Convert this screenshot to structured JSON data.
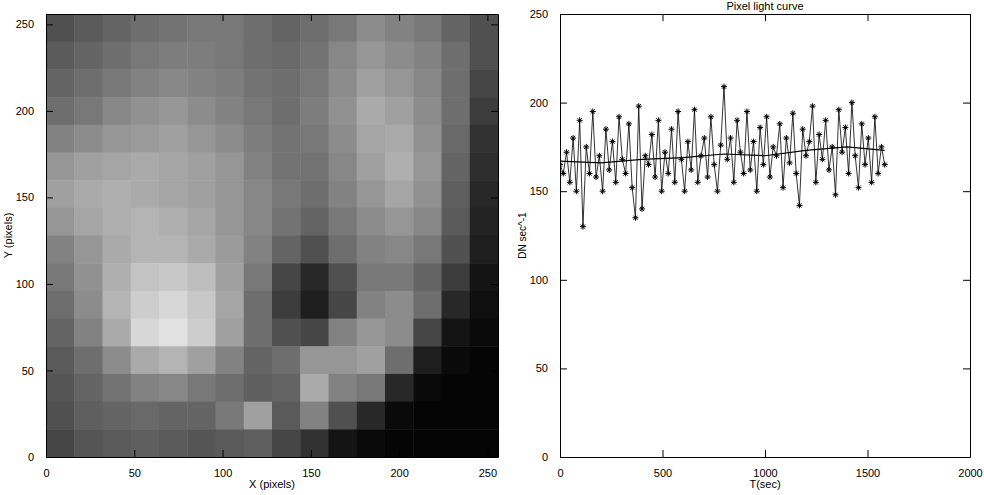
{
  "chart_data": [
    {
      "type": "heatmap",
      "xlabel": "X (pixels)",
      "ylabel": "Y (pixels)",
      "xlim": [
        0,
        256
      ],
      "ylim": [
        0,
        256
      ],
      "xticks": [
        0,
        50,
        100,
        150,
        200,
        250
      ],
      "yticks": [
        0,
        50,
        100,
        150,
        200,
        250
      ],
      "cells": [
        [
          80,
          90,
          100,
          110,
          115,
          120,
          120,
          110,
          100,
          110,
          120,
          140,
          130,
          120,
          100,
          80
        ],
        [
          90,
          100,
          110,
          120,
          125,
          125,
          120,
          110,
          105,
          115,
          135,
          150,
          140,
          130,
          110,
          80
        ],
        [
          100,
          110,
          120,
          130,
          135,
          130,
          125,
          115,
          110,
          120,
          140,
          160,
          150,
          135,
          110,
          70
        ],
        [
          110,
          120,
          135,
          145,
          150,
          140,
          130,
          120,
          110,
          125,
          145,
          170,
          160,
          140,
          110,
          60
        ],
        [
          130,
          140,
          150,
          155,
          160,
          150,
          140,
          125,
          115,
          120,
          140,
          165,
          170,
          145,
          105,
          50
        ],
        [
          150,
          160,
          165,
          170,
          165,
          160,
          150,
          130,
          115,
          115,
          135,
          160,
          175,
          150,
          100,
          45
        ],
        [
          160,
          170,
          175,
          170,
          165,
          160,
          150,
          135,
          120,
          110,
          130,
          150,
          165,
          145,
          95,
          40
        ],
        [
          150,
          165,
          175,
          180,
          175,
          165,
          150,
          135,
          115,
          100,
          120,
          140,
          150,
          135,
          90,
          35
        ],
        [
          130,
          150,
          170,
          180,
          180,
          170,
          155,
          130,
          100,
          80,
          110,
          130,
          135,
          120,
          80,
          30
        ],
        [
          120,
          145,
          175,
          195,
          200,
          190,
          160,
          120,
          70,
          40,
          80,
          120,
          120,
          100,
          60,
          20
        ],
        [
          110,
          140,
          180,
          205,
          215,
          200,
          165,
          110,
          60,
          30,
          70,
          130,
          140,
          110,
          40,
          15
        ],
        [
          100,
          130,
          170,
          215,
          225,
          205,
          160,
          110,
          80,
          70,
          130,
          150,
          140,
          70,
          20,
          10
        ],
        [
          90,
          110,
          140,
          170,
          180,
          160,
          130,
          100,
          110,
          150,
          150,
          160,
          110,
          30,
          10,
          5
        ],
        [
          85,
          100,
          115,
          130,
          135,
          120,
          110,
          95,
          100,
          170,
          130,
          120,
          40,
          10,
          5,
          5
        ],
        [
          80,
          95,
          100,
          105,
          100,
          100,
          120,
          160,
          90,
          130,
          80,
          40,
          10,
          5,
          5,
          5
        ],
        [
          70,
          85,
          90,
          95,
          90,
          85,
          90,
          95,
          70,
          50,
          20,
          10,
          5,
          5,
          5,
          5
        ]
      ]
    },
    {
      "type": "line",
      "title": "Pixel light curve",
      "xlabel": "T(sec)",
      "ylabel": "DN sec^-1",
      "xlim": [
        0,
        2000
      ],
      "ylim": [
        0,
        250
      ],
      "xticks": [
        0,
        500,
        1000,
        1500,
        2000
      ],
      "yticks": [
        0,
        50,
        100,
        150,
        200,
        250
      ],
      "series": [
        {
          "marker": "asterisk",
          "line_style": "solid",
          "color": "#000000",
          "x": [
            0,
            16,
            32,
            48,
            64,
            80,
            96,
            112,
            128,
            144,
            160,
            176,
            192,
            208,
            224,
            240,
            256,
            272,
            288,
            304,
            320,
            336,
            352,
            368,
            384,
            400,
            416,
            432,
            448,
            464,
            480,
            496,
            512,
            528,
            544,
            560,
            576,
            592,
            608,
            624,
            640,
            656,
            672,
            688,
            704,
            720,
            736,
            752,
            768,
            784,
            800,
            816,
            832,
            848,
            864,
            880,
            896,
            912,
            928,
            944,
            960,
            976,
            992,
            1008,
            1024,
            1040,
            1056,
            1072,
            1088,
            1104,
            1120,
            1136,
            1152,
            1168,
            1184,
            1200,
            1216,
            1232,
            1248,
            1264,
            1280,
            1296,
            1312,
            1328,
            1344,
            1360,
            1376,
            1392,
            1408,
            1424,
            1440,
            1456,
            1472,
            1488,
            1504,
            1520,
            1536,
            1552,
            1568,
            1584
          ],
          "values": [
            165,
            160,
            172,
            155,
            180,
            150,
            190,
            130,
            175,
            160,
            195,
            158,
            170,
            150,
            185,
            162,
            178,
            155,
            192,
            168,
            160,
            188,
            152,
            135,
            198,
            140,
            170,
            165,
            182,
            158,
            190,
            150,
            172,
            160,
            185,
            155,
            195,
            168,
            150,
            178,
            162,
            196,
            155,
            170,
            180,
            158,
            192,
            165,
            150,
            176,
            209,
            168,
            180,
            155,
            190,
            172,
            160,
            195,
            162,
            178,
            150,
            186,
            165,
            192,
            158,
            175,
            170,
            188,
            152,
            180,
            166,
            194,
            160,
            142,
            185,
            170,
            178,
            198,
            155,
            182,
            168,
            190,
            162,
            175,
            148,
            196,
            172,
            186,
            160,
            200,
            170,
            152,
            188,
            165,
            180,
            155,
            192,
            160,
            175,
            165
          ]
        },
        {
          "line_style": "solid",
          "color": "#000000",
          "x": [
            0,
            200,
            400,
            600,
            800,
            1000,
            1200,
            1400,
            1584
          ],
          "values": [
            167,
            166,
            168,
            169,
            171,
            170,
            173,
            175,
            173
          ]
        }
      ]
    }
  ]
}
